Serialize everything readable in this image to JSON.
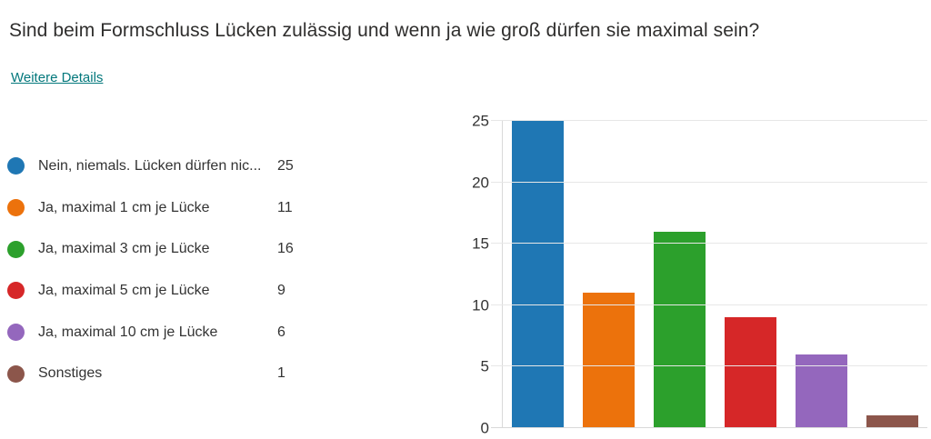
{
  "header": {
    "title": "Sind beim Formschluss Lücken zulässig und wenn ja wie groß dürfen sie maximal sein?",
    "details_link": "Weitere Details"
  },
  "colors": {
    "link_teal": "#03787c",
    "text": "#333333",
    "axis_line": "#d9d9d9",
    "gridline": "#e7e7e7"
  },
  "chart_data": {
    "type": "bar",
    "categories": [
      "Nein, niemals. Lücken dürfen nic...",
      "Ja, maximal 1 cm je Lücke",
      "Ja, maximal 3 cm je Lücke",
      "Ja, maximal 5 cm je Lücke",
      "Ja, maximal 10 cm je Lücke",
      "Sonstiges"
    ],
    "values": [
      25,
      11,
      16,
      9,
      6,
      1
    ],
    "colors": [
      "#1f77b4",
      "#ec720c",
      "#2ca02c",
      "#d62728",
      "#9467bd",
      "#8c564b"
    ],
    "title": "",
    "xlabel": "",
    "ylabel": "",
    "ylim": [
      0,
      25
    ],
    "yticks": [
      0,
      5,
      10,
      15,
      20,
      25
    ],
    "grid": true,
    "legend_position": "left"
  }
}
